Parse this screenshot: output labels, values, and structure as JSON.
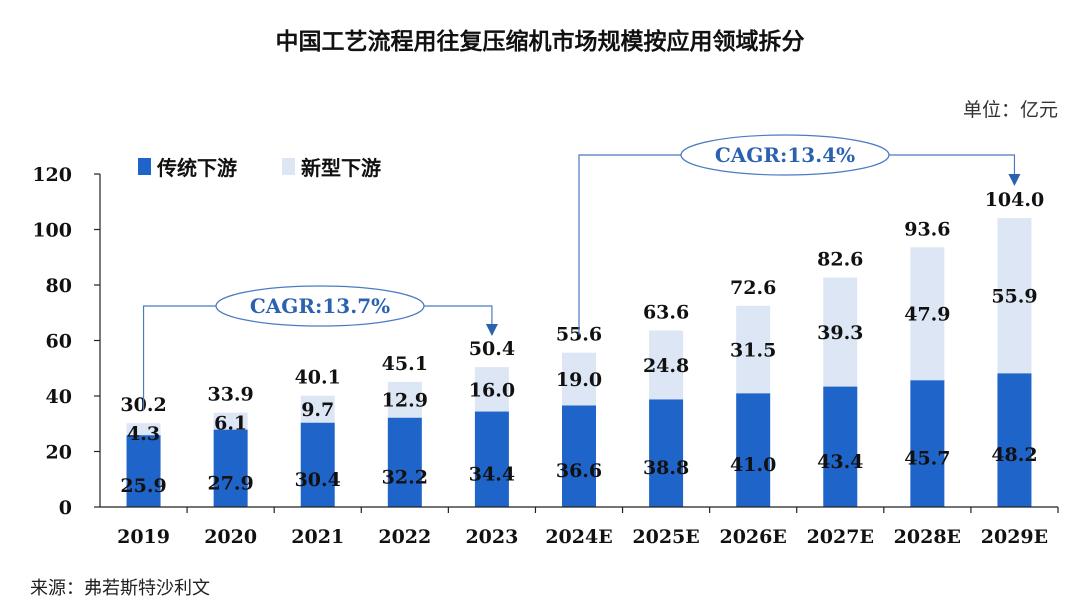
{
  "chart_data": {
    "type": "bar",
    "stacked": true,
    "title": "中国工艺流程用往复压缩机市场规模按应用领域拆分",
    "unit_label": "单位：亿元",
    "source": "来源：弗若斯特沙利文",
    "categories": [
      "2019",
      "2020",
      "2021",
      "2022",
      "2023",
      "2024E",
      "2025E",
      "2026E",
      "2027E",
      "2028E",
      "2029E"
    ],
    "series": [
      {
        "name": "传统下游",
        "color": "#1f64c8",
        "values": [
          25.9,
          27.9,
          30.4,
          32.2,
          34.4,
          36.6,
          38.8,
          41.0,
          43.4,
          45.7,
          48.2
        ]
      },
      {
        "name": "新型下游",
        "color": "#dce6f4",
        "values": [
          4.3,
          6.1,
          9.7,
          12.9,
          16.0,
          19.0,
          24.8,
          31.5,
          39.3,
          47.9,
          55.9
        ]
      }
    ],
    "totals": [
      30.2,
      33.9,
      40.1,
      45.1,
      50.4,
      55.6,
      63.6,
      72.6,
      82.6,
      93.6,
      104.0
    ],
    "value_labels": {
      "bottom": [
        "25.9",
        "27.9",
        "30.4",
        "32.2",
        "34.4",
        "36.6",
        "38.8",
        "41.0",
        "43.4",
        "45.7",
        "48.2"
      ],
      "top": [
        "4.3",
        "6.1",
        "9.7",
        "12.9",
        "16.0",
        "19.0",
        "24.8",
        "31.5",
        "39.3",
        "47.9",
        "55.9"
      ],
      "totals": [
        "30.2",
        "33.9",
        "40.1",
        "45.1",
        "50.4",
        "55.6",
        "63.6",
        "72.6",
        "82.6",
        "93.6",
        "104.0"
      ]
    },
    "ylim": [
      0,
      120
    ],
    "yticks": [
      0,
      20,
      40,
      60,
      80,
      100,
      120
    ],
    "grid": false,
    "legend_position": "top-left",
    "annotations": [
      {
        "text": "CAGR:13.7%",
        "from": "2019",
        "to": "2023"
      },
      {
        "text": "CAGR:13.4%",
        "from": "2024E",
        "to": "2029E"
      }
    ]
  }
}
